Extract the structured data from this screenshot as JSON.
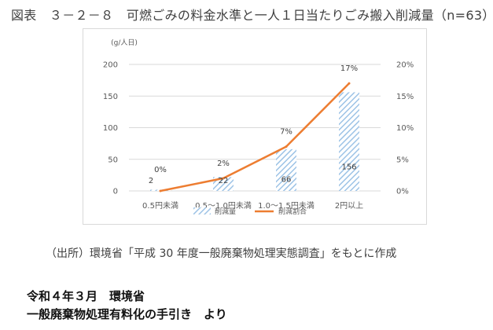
{
  "figure_title": "図表　３－２－８　可燃ごみの料金水準と一人１日当たりごみ搬入削減量（n=63）",
  "source_note": "（出所）環境省「平成 30 年度一般廃棄物処理実態調査」をもとに作成",
  "footer": {
    "line1": "令和４年３月　環境省",
    "line2": "一般廃棄物処理有料化の手引き　より"
  },
  "chart_data": {
    "type": "bar+line",
    "categories": [
      "0.5円未満",
      "0.5～1.0円未満",
      "1.0～1.5円未満",
      "2円以上"
    ],
    "left_axis": {
      "label": "(g/人日)",
      "ylim": [
        0,
        200
      ],
      "ticks": [
        "0",
        "50",
        "100",
        "150",
        "200"
      ]
    },
    "right_axis": {
      "ylim": [
        0,
        20
      ],
      "ticks": [
        "0%",
        "5%",
        "10%",
        "15%",
        "20%"
      ]
    },
    "grid": true,
    "legend_position": "bottom",
    "series": [
      {
        "name": "削減量",
        "kind": "bar",
        "axis": "left",
        "values": [
          2,
          22,
          66,
          156
        ],
        "labels": [
          "2",
          "22",
          "66",
          "156"
        ],
        "color": "#9dc3e6"
      },
      {
        "name": "削減割合",
        "kind": "line",
        "axis": "right",
        "values": [
          0,
          2,
          7,
          17
        ],
        "labels": [
          "0%",
          "2%",
          "7%",
          "17%"
        ],
        "color": "#ed7d31"
      }
    ]
  }
}
